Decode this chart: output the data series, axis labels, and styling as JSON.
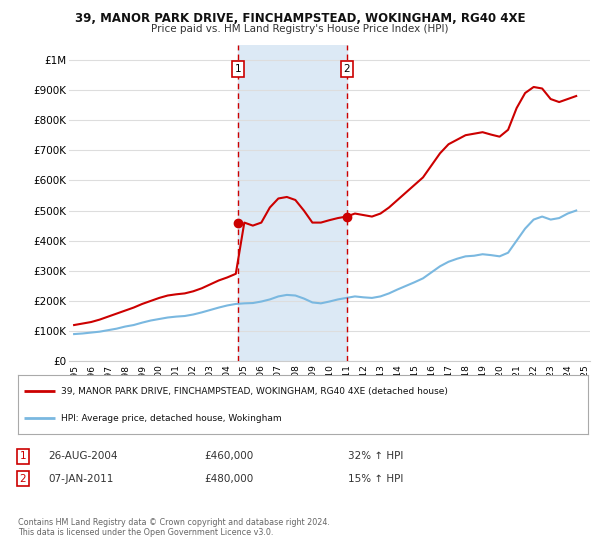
{
  "title_line1": "39, MANOR PARK DRIVE, FINCHAMPSTEAD, WOKINGHAM, RG40 4XE",
  "title_line2": "Price paid vs. HM Land Registry's House Price Index (HPI)",
  "ylim": [
    0,
    1050000
  ],
  "yticks": [
    0,
    100000,
    200000,
    300000,
    400000,
    500000,
    600000,
    700000,
    800000,
    900000,
    1000000
  ],
  "ytick_labels": [
    "£0",
    "£100K",
    "£200K",
    "£300K",
    "£400K",
    "£500K",
    "£600K",
    "£700K",
    "£800K",
    "£900K",
    "£1M"
  ],
  "background_color": "#ffffff",
  "plot_bg_color": "#ffffff",
  "grid_color": "#dddddd",
  "shade_color": "#dce9f5",
  "marker1_date": 2004.65,
  "marker1_value": 460000,
  "marker1_label": "1",
  "marker2_date": 2011.02,
  "marker2_value": 480000,
  "marker2_label": "2",
  "legend_line1": "39, MANOR PARK DRIVE, FINCHAMPSTEAD, WOKINGHAM, RG40 4XE (detached house)",
  "legend_line2": "HPI: Average price, detached house, Wokingham",
  "table_row1": [
    "1",
    "26-AUG-2004",
    "£460,000",
    "32% ↑ HPI"
  ],
  "table_row2": [
    "2",
    "07-JAN-2011",
    "£480,000",
    "15% ↑ HPI"
  ],
  "footnote": "Contains HM Land Registry data © Crown copyright and database right 2024.\nThis data is licensed under the Open Government Licence v3.0.",
  "hpi_color": "#7ab8e0",
  "price_color": "#cc0000",
  "dashed_line_color": "#cc0000",
  "hpi_x": [
    1995.0,
    1995.5,
    1996.0,
    1996.5,
    1997.0,
    1997.5,
    1998.0,
    1998.5,
    1999.0,
    1999.5,
    2000.0,
    2000.5,
    2001.0,
    2001.5,
    2002.0,
    2002.5,
    2003.0,
    2003.5,
    2004.0,
    2004.5,
    2005.0,
    2005.5,
    2006.0,
    2006.5,
    2007.0,
    2007.5,
    2008.0,
    2008.5,
    2009.0,
    2009.5,
    2010.0,
    2010.5,
    2011.0,
    2011.5,
    2012.0,
    2012.5,
    2013.0,
    2013.5,
    2014.0,
    2014.5,
    2015.0,
    2015.5,
    2016.0,
    2016.5,
    2017.0,
    2017.5,
    2018.0,
    2018.5,
    2019.0,
    2019.5,
    2020.0,
    2020.5,
    2021.0,
    2021.5,
    2022.0,
    2022.5,
    2023.0,
    2023.5,
    2024.0,
    2024.5
  ],
  "hpi_y": [
    90000,
    92000,
    95000,
    98000,
    103000,
    108000,
    115000,
    120000,
    128000,
    135000,
    140000,
    145000,
    148000,
    150000,
    155000,
    162000,
    170000,
    178000,
    185000,
    190000,
    192000,
    193000,
    198000,
    205000,
    215000,
    220000,
    218000,
    208000,
    195000,
    192000,
    198000,
    205000,
    210000,
    215000,
    212000,
    210000,
    215000,
    225000,
    238000,
    250000,
    262000,
    275000,
    295000,
    315000,
    330000,
    340000,
    348000,
    350000,
    355000,
    352000,
    348000,
    360000,
    400000,
    440000,
    470000,
    480000,
    470000,
    475000,
    490000,
    500000
  ],
  "price_x": [
    1995.0,
    1995.5,
    1996.0,
    1996.5,
    1997.0,
    1997.5,
    1998.0,
    1998.5,
    1999.0,
    1999.5,
    2000.0,
    2000.5,
    2001.0,
    2001.5,
    2002.0,
    2002.5,
    2003.0,
    2003.5,
    2004.0,
    2004.5,
    2005.0,
    2005.5,
    2006.0,
    2006.5,
    2007.0,
    2007.5,
    2008.0,
    2008.5,
    2009.0,
    2009.5,
    2010.0,
    2010.5,
    2011.0,
    2011.5,
    2012.0,
    2012.5,
    2013.0,
    2013.5,
    2014.0,
    2014.5,
    2015.0,
    2015.5,
    2016.0,
    2016.5,
    2017.0,
    2017.5,
    2018.0,
    2018.5,
    2019.0,
    2019.5,
    2020.0,
    2020.5,
    2021.0,
    2021.5,
    2022.0,
    2022.5,
    2023.0,
    2023.5,
    2024.0,
    2024.5
  ],
  "price_y": [
    120000,
    125000,
    130000,
    138000,
    148000,
    158000,
    168000,
    178000,
    190000,
    200000,
    210000,
    218000,
    222000,
    225000,
    232000,
    242000,
    255000,
    268000,
    278000,
    290000,
    460000,
    450000,
    460000,
    510000,
    540000,
    545000,
    535000,
    500000,
    460000,
    460000,
    468000,
    475000,
    480000,
    490000,
    485000,
    480000,
    490000,
    510000,
    535000,
    560000,
    585000,
    610000,
    650000,
    690000,
    720000,
    735000,
    750000,
    755000,
    760000,
    752000,
    745000,
    768000,
    840000,
    890000,
    910000,
    905000,
    870000,
    860000,
    870000,
    880000
  ]
}
